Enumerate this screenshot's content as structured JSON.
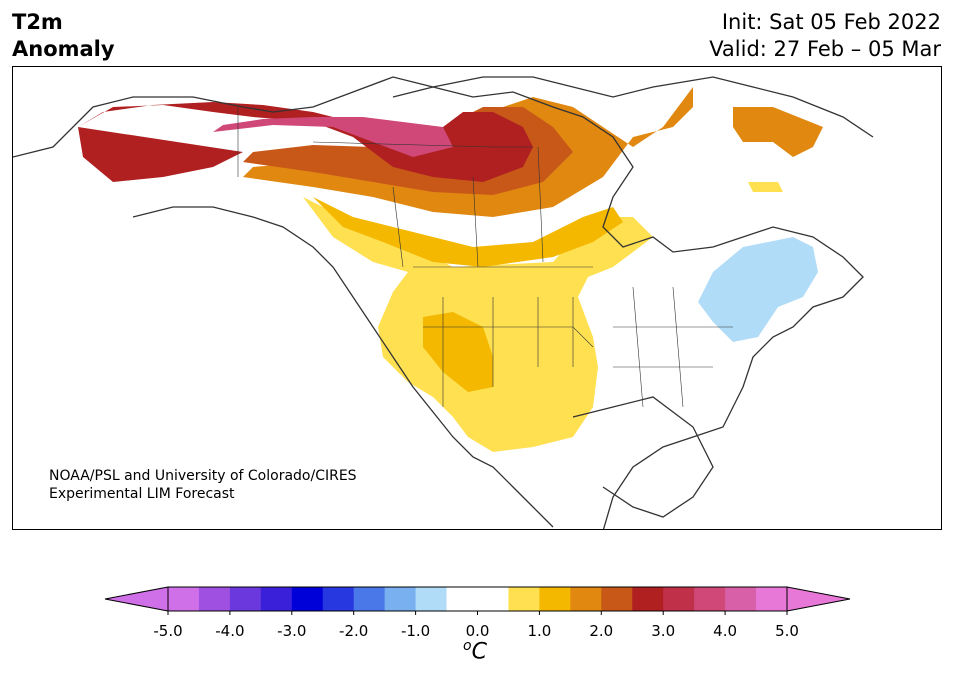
{
  "header": {
    "title_line1": "T2m",
    "title_line2": "Anomaly",
    "init": "Init: Sat 05 Feb 2022",
    "valid": "Valid: 27 Feb – 05 Mar"
  },
  "credit": {
    "line1": "NOAA/PSL and University of Colorado/CIRES",
    "line2": "Experimental LIM Forecast"
  },
  "colorbar": {
    "unit_base": "C",
    "unit_sup": "o",
    "tick_labels": [
      "-5.0",
      "-4.0",
      "-3.0",
      "-2.0",
      "-1.0",
      "0.0",
      "1.0",
      "2.0",
      "3.0",
      "4.0",
      "5.0"
    ],
    "colors": [
      "#d070e8",
      "#a050e0",
      "#6a38dc",
      "#3a20d8",
      "#0000d8",
      "#2838e0",
      "#4a78e8",
      "#78b0f0",
      "#b0dcf8",
      "#ffffff",
      "#ffffff",
      "#ffe050",
      "#f4b800",
      "#e08810",
      "#c85818",
      "#b02020",
      "#c03048",
      "#d04878",
      "#d860a8",
      "#e878d8"
    ],
    "extend_min_color": "#d070e8",
    "extend_max_color": "#e878d8"
  },
  "map": {
    "region": "North America",
    "anomaly_colors": {
      "light_yellow": "#ffe050",
      "gold": "#f4b800",
      "orange": "#e08810",
      "dark_orange": "#c85818",
      "red": "#b02020",
      "crimson": "#c03048",
      "pink": "#d04878",
      "light_blue": "#b0dcf8"
    }
  }
}
